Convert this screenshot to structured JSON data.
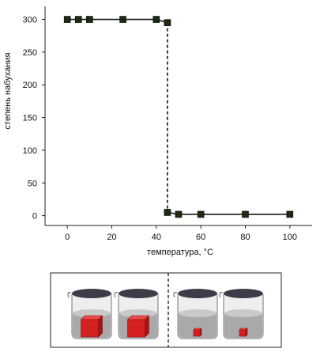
{
  "chart_data": {
    "type": "line",
    "xlabel": "температура, °C",
    "ylabel": "степень набухания",
    "xlim": [
      -10,
      110
    ],
    "ylim": [
      -15,
      320
    ],
    "xticks": [
      0,
      20,
      40,
      60,
      80,
      100
    ],
    "yticks": [
      0,
      50,
      100,
      150,
      200,
      250,
      300
    ],
    "grid": false,
    "series": [
      {
        "x": [
          0,
          5,
          10,
          25,
          40,
          45,
          45,
          50,
          60,
          80,
          100
        ],
        "y": [
          300,
          300,
          300,
          300,
          300,
          295,
          5,
          2,
          2,
          2,
          2
        ],
        "color": "#1a1a1a",
        "marker": "square",
        "marker_color": "#1c2b12"
      }
    ],
    "transition": {
      "x": 45,
      "from_y": 295,
      "to_y": 5,
      "style": "dashed"
    }
  },
  "illustration": {
    "description_free": true,
    "beakers": [
      {
        "cube": "large",
        "side": "below"
      },
      {
        "cube": "large",
        "side": "below"
      },
      {
        "cube": "small",
        "side": "above"
      },
      {
        "cube": "small",
        "side": "above"
      }
    ],
    "cube_color": "#d42020",
    "divider_style": "dashed"
  }
}
